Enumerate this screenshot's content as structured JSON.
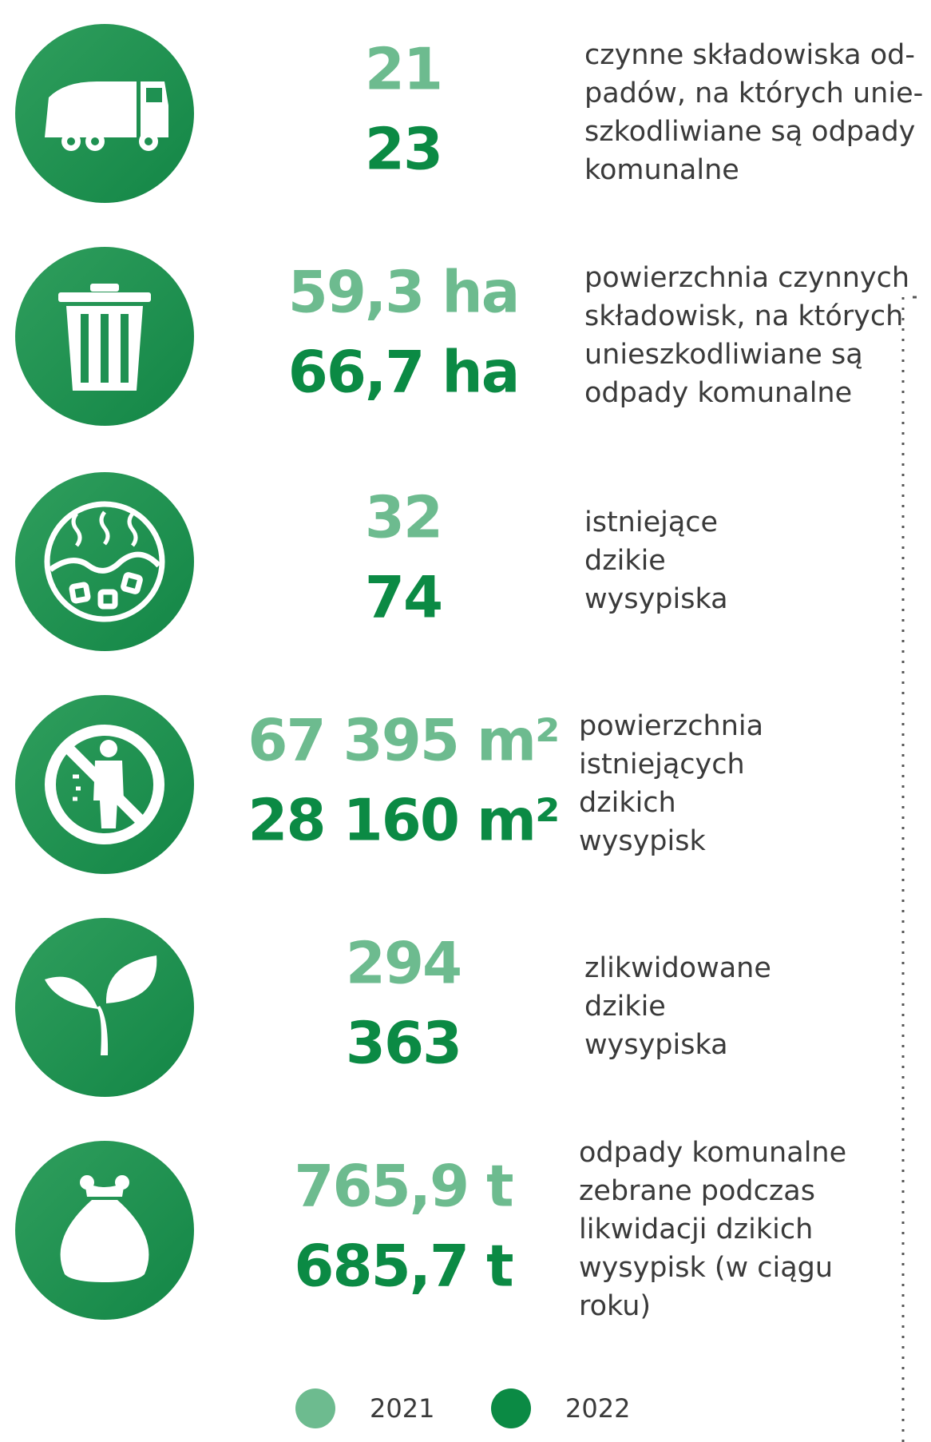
{
  "colors": {
    "2021": "#6dbb8f",
    "2022": "#0b8a44"
  },
  "rows": [
    {
      "value_2021": "21",
      "value_2022": "23",
      "label": [
        "czynne składowiska od-",
        "padów, na których unie-",
        "szkodliwiane są odpady",
        "komunalne"
      ]
    },
    {
      "value_2021": "59,3 ha",
      "value_2022": "66,7 ha",
      "label": [
        "powierzchnia czynnych",
        "składowisk, na których",
        "unieszkodliwiane są",
        "odpady komunalne"
      ]
    },
    {
      "value_2021": "32",
      "value_2022": "74",
      "label": [
        "istniejące",
        "dzikie",
        "wysypiska"
      ]
    },
    {
      "value_2021": "67 395 m²",
      "value_2022": "28 160 m²",
      "label": [
        "powierzchnia",
        "istniejących",
        "dzikich",
        "wysypisk"
      ]
    },
    {
      "value_2021": "294",
      "value_2022": "363",
      "label": [
        "zlikwidowane",
        "dzikie",
        "wysypiska"
      ]
    },
    {
      "value_2021": "765,9 t",
      "value_2022": "685,7 t",
      "label": [
        "odpady komunalne",
        "zebrane podczas",
        "likwidacji dzikich",
        "wysypisk (w ciągu",
        "roku)"
      ]
    }
  ],
  "legend": [
    "2021",
    "2022"
  ]
}
